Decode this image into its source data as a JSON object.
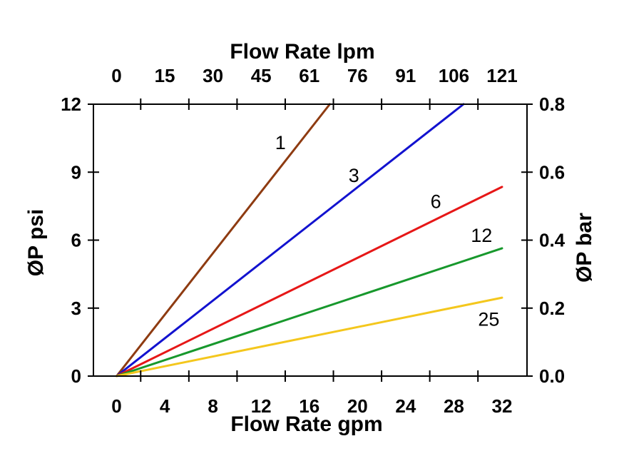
{
  "chart_data": {
    "type": "line",
    "background": "#ffffff",
    "frame_color": "#000000",
    "grid": "off",
    "legend": "none (inline curve labels)",
    "axes": {
      "top": {
        "title": "Flow Rate lpm",
        "tick_labels": [
          "0",
          "15",
          "30",
          "45",
          "61",
          "76",
          "91",
          "106",
          "121"
        ],
        "tick_positions_gpm": [
          0,
          4,
          8,
          12,
          16,
          20,
          24,
          28,
          32
        ]
      },
      "bottom": {
        "title": "Flow Rate gpm",
        "tick_labels": [
          "0",
          "4",
          "8",
          "12",
          "16",
          "20",
          "24",
          "28",
          "32"
        ],
        "tick_positions_gpm": [
          0,
          4,
          8,
          12,
          16,
          20,
          24,
          28,
          32
        ],
        "minor_ticks_gpm": [
          2,
          6,
          10,
          14,
          18,
          22,
          26,
          30
        ],
        "range_gpm": [
          -1.93,
          34.06
        ]
      },
      "left": {
        "title": "ØP psi",
        "tick_labels": [
          "12",
          "9",
          "6",
          "3",
          "0"
        ],
        "tick_positions_psi": [
          12,
          9,
          6,
          3,
          0
        ],
        "range_psi": [
          0,
          12
        ]
      },
      "right": {
        "title": "ØP bar",
        "tick_labels": [
          "0.8",
          "0.6",
          "0.4",
          "0.2",
          "0.0"
        ],
        "tick_positions_psi": [
          12,
          9,
          6,
          3,
          0
        ],
        "range_bar": [
          0,
          0.8
        ]
      }
    },
    "series": [
      {
        "label": "1",
        "color": "#8e3b11",
        "points_gpm_psi": [
          [
            0,
            0
          ],
          [
            17.7,
            12.0
          ]
        ],
        "label_at_gpm_psi": [
          13.6,
          10.3
        ]
      },
      {
        "label": "3",
        "color": "#1212cf",
        "points_gpm_psi": [
          [
            0,
            0
          ],
          [
            28.8,
            12.0
          ]
        ],
        "label_at_gpm_psi": [
          19.7,
          8.85
        ]
      },
      {
        "label": "6",
        "color": "#e61717",
        "points_gpm_psi": [
          [
            0,
            0
          ],
          [
            32.0,
            8.35
          ]
        ],
        "label_at_gpm_psi": [
          26.5,
          7.7
        ]
      },
      {
        "label": "12",
        "color": "#17982c",
        "points_gpm_psi": [
          [
            0,
            0
          ],
          [
            32.0,
            5.64
          ]
        ],
        "label_at_gpm_psi": [
          30.3,
          6.2
        ]
      },
      {
        "label": "25",
        "color": "#f4c71d",
        "points_gpm_psi": [
          [
            0,
            0
          ],
          [
            32.0,
            3.46
          ]
        ],
        "label_at_gpm_psi": [
          30.9,
          2.5
        ]
      }
    ]
  }
}
